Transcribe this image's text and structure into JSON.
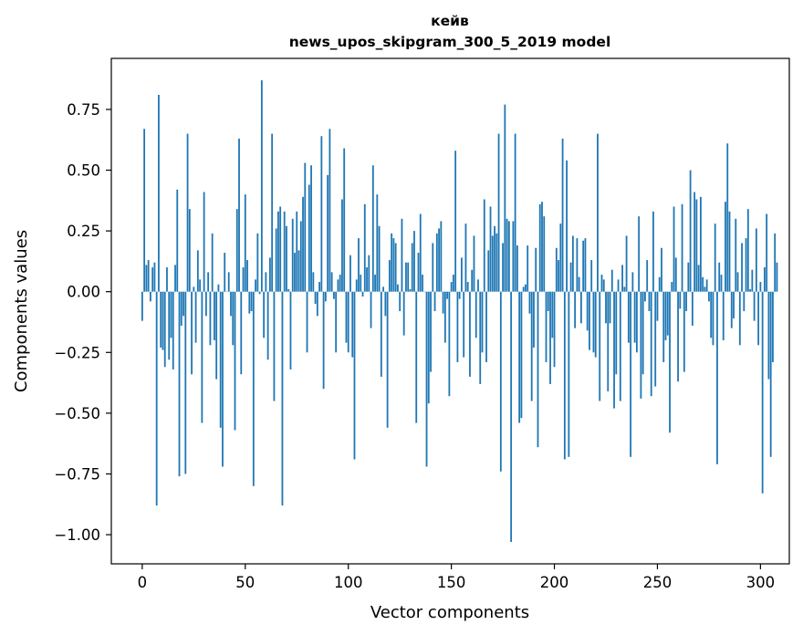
{
  "chart_data": {
    "type": "bar",
    "title_line1": "кейв",
    "title_line2": "news_upos_skipgram_300_5_2019 model",
    "xlabel": "Vector components",
    "ylabel": "Components values",
    "xlim": [
      -15,
      314
    ],
    "ylim": [
      -1.12,
      0.96
    ],
    "x_ticks": [
      0,
      50,
      100,
      150,
      200,
      250,
      300
    ],
    "y_ticks": [
      0.75,
      0.5,
      0.25,
      0.0,
      -0.25,
      -0.5,
      -0.75,
      -1.0
    ],
    "y_tick_labels": [
      "0.75",
      "0.50",
      "0.25",
      "0.00",
      "−0.25",
      "−0.50",
      "−0.75",
      "−1.00"
    ],
    "bar_color": "#1f77b4",
    "values": [
      -0.12,
      0.67,
      0.11,
      0.13,
      -0.04,
      0.1,
      0.12,
      -0.88,
      0.81,
      -0.23,
      -0.24,
      -0.31,
      0.1,
      -0.28,
      -0.19,
      -0.32,
      0.11,
      0.42,
      -0.76,
      -0.14,
      -0.1,
      -0.75,
      0.65,
      0.34,
      -0.34,
      0.02,
      -0.21,
      0.17,
      0.05,
      -0.54,
      0.41,
      -0.1,
      0.08,
      -0.22,
      0.24,
      -0.2,
      -0.36,
      0.03,
      -0.56,
      -0.72,
      0.16,
      0.0,
      0.08,
      -0.1,
      -0.22,
      -0.57,
      0.34,
      0.63,
      -0.34,
      0.1,
      0.4,
      0.13,
      -0.09,
      -0.08,
      -0.8,
      0.05,
      0.24,
      -0.01,
      0.87,
      -0.19,
      0.08,
      -0.28,
      0.14,
      0.65,
      -0.45,
      0.26,
      0.33,
      0.35,
      -0.88,
      0.33,
      0.27,
      0.01,
      -0.32,
      0.3,
      0.16,
      0.33,
      0.17,
      0.29,
      0.39,
      0.53,
      -0.25,
      0.44,
      0.52,
      0.08,
      -0.05,
      -0.1,
      0.04,
      0.64,
      -0.4,
      -0.04,
      0.48,
      0.67,
      0.08,
      -0.03,
      -0.25,
      0.05,
      0.07,
      0.38,
      0.59,
      -0.21,
      -0.25,
      0.15,
      -0.27,
      -0.69,
      0.05,
      0.22,
      0.07,
      -0.02,
      0.36,
      0.1,
      0.15,
      -0.15,
      0.52,
      0.07,
      0.4,
      0.27,
      -0.35,
      0.02,
      -0.1,
      -0.56,
      0.13,
      0.24,
      0.22,
      0.2,
      0.03,
      -0.08,
      0.3,
      -0.18,
      0.12,
      0.12,
      0.01,
      0.2,
      0.25,
      -0.54,
      0.16,
      0.32,
      0.07,
      0.0,
      -0.72,
      -0.46,
      -0.33,
      0.2,
      -0.08,
      0.24,
      0.26,
      0.29,
      -0.09,
      -0.21,
      -0.03,
      -0.43,
      0.04,
      0.07,
      0.58,
      -0.29,
      -0.03,
      0.14,
      -0.27,
      0.28,
      0.04,
      -0.35,
      0.09,
      0.23,
      -0.19,
      0.05,
      -0.38,
      -0.25,
      0.38,
      -0.29,
      0.17,
      0.35,
      0.23,
      0.27,
      0.24,
      0.65,
      -0.74,
      0.2,
      0.77,
      0.3,
      0.29,
      -1.03,
      0.29,
      0.65,
      0.19,
      -0.54,
      -0.52,
      0.02,
      0.03,
      0.19,
      -0.09,
      -0.45,
      -0.23,
      0.18,
      -0.64,
      0.36,
      0.37,
      0.31,
      -0.29,
      -0.08,
      -0.38,
      -0.19,
      -0.31,
      0.18,
      0.13,
      0.28,
      0.63,
      -0.69,
      0.54,
      -0.68,
      0.12,
      0.23,
      -0.15,
      0.22,
      0.06,
      -0.13,
      0.21,
      0.22,
      -0.16,
      -0.24,
      0.13,
      -0.25,
      -0.27,
      0.65,
      -0.45,
      0.07,
      0.05,
      -0.13,
      -0.41,
      -0.13,
      0.09,
      -0.48,
      -0.34,
      0.05,
      -0.45,
      0.11,
      0.02,
      0.23,
      -0.21,
      -0.68,
      0.08,
      -0.21,
      -0.25,
      0.31,
      -0.44,
      -0.34,
      -0.04,
      0.13,
      -0.08,
      -0.43,
      0.33,
      -0.39,
      -0.12,
      0.06,
      0.18,
      -0.29,
      -0.2,
      -0.18,
      -0.58,
      0.04,
      0.35,
      0.14,
      -0.37,
      -0.07,
      0.36,
      -0.33,
      -0.08,
      0.12,
      0.5,
      -0.14,
      0.41,
      0.38,
      0.11,
      0.39,
      0.06,
      0.02,
      0.05,
      -0.04,
      -0.19,
      -0.22,
      0.28,
      -0.71,
      0.12,
      0.07,
      -0.2,
      0.37,
      0.61,
      0.33,
      -0.15,
      -0.11,
      0.3,
      0.08,
      -0.22,
      0.2,
      -0.08,
      0.22,
      0.34,
      0.01,
      0.09,
      -0.12,
      0.26,
      -0.22,
      0.04,
      -0.83,
      0.1,
      0.32,
      -0.36,
      -0.68,
      -0.29,
      0.24,
      0.12
    ]
  }
}
